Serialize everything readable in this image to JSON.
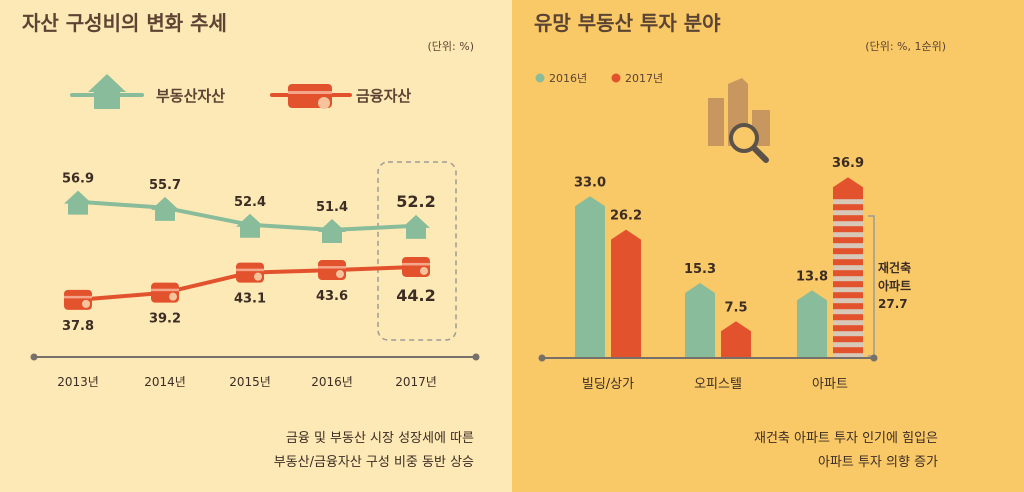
{
  "colors": {
    "left_bg": "#fde9b6",
    "right_bg": "#f9c867",
    "real_estate": "#88bc9a",
    "financial": "#e2532d",
    "axis": "#77706a",
    "icon": "#c8965f"
  },
  "chart_data": [
    {
      "type": "line",
      "title": "자산 구성비의 변화 추세",
      "unit_label": "(단위: %)",
      "x": [
        "2013년",
        "2014년",
        "2015년",
        "2016년",
        "2017년"
      ],
      "series": [
        {
          "name": "부동산자산",
          "values": [
            56.9,
            55.7,
            52.4,
            51.4,
            52.2
          ],
          "labels": [
            "56.9",
            "55.7",
            "52.4",
            "51.4",
            "52.2"
          ]
        },
        {
          "name": "금융자산",
          "values": [
            37.8,
            39.2,
            43.1,
            43.6,
            44.2
          ],
          "labels": [
            "37.8",
            "39.2",
            "43.1",
            "43.6",
            "44.2"
          ]
        }
      ],
      "ylim": [
        30,
        65
      ],
      "highlight_category": "2017년",
      "note_lines": [
        "금융 및 부동산 시장 성장세에 따른",
        "부동산/금융자산 구성 비중 동반 상승"
      ]
    },
    {
      "type": "bar",
      "title": "유망 부동산 투자 분야",
      "unit_label": "(단위: %, 1순위)",
      "categories": [
        "빌딩/상가",
        "오피스텔",
        "아파트"
      ],
      "series": [
        {
          "name": "2016년",
          "values": [
            33.0,
            15.3,
            13.8
          ],
          "labels": [
            "33.0",
            "15.3",
            "13.8"
          ]
        },
        {
          "name": "2017년",
          "values": [
            26.2,
            7.5,
            36.9
          ],
          "labels": [
            "26.2",
            "7.5",
            "36.9"
          ]
        }
      ],
      "ylim": [
        0,
        40
      ],
      "annotation": {
        "lines": [
          "재건축",
          "아파트",
          "27.7"
        ],
        "value": 27.7
      },
      "note_lines": [
        "재건축 아파트 투자 인기에 힘입은",
        "아파트 투자 의향 증가"
      ]
    }
  ]
}
